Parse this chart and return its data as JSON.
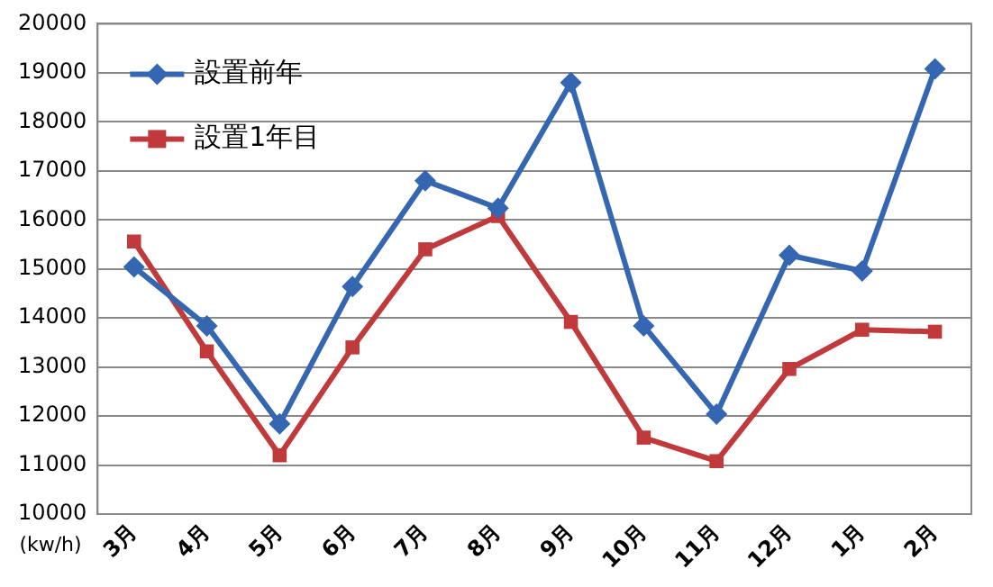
{
  "chart_data": {
    "type": "line",
    "categories": [
      "3月",
      "4月",
      "5月",
      "6月",
      "7月",
      "8月",
      "9月",
      "10月",
      "11月",
      "12月",
      "1月",
      "2月"
    ],
    "series": [
      {
        "name": "設置前年",
        "color": "#3566b2",
        "marker": "diamond",
        "values": [
          15040,
          13840,
          11840,
          14640,
          16800,
          16240,
          18800,
          13840,
          12040,
          15280,
          14960,
          19080
        ]
      },
      {
        "name": "設置1年目",
        "color": "#c0393b",
        "marker": "square",
        "values": [
          15560,
          13320,
          11200,
          13400,
          15400,
          16080,
          13920,
          11560,
          11080,
          12960,
          13760,
          13720
        ]
      }
    ],
    "ylim": [
      10000,
      20000
    ],
    "yticks": [
      10000,
      11000,
      12000,
      13000,
      14000,
      15000,
      16000,
      17000,
      18000,
      19000,
      20000
    ],
    "grid": "y",
    "legend": "top left",
    "line_style": "solid",
    "annotations": [
      "(kw/h)"
    ]
  }
}
